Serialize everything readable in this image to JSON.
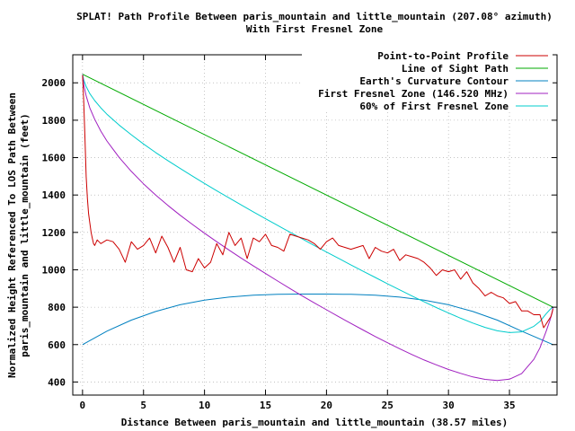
{
  "chart_data": {
    "type": "line",
    "title_line1": "SPLAT! Path Profile Between paris_mountain and little_mountain (207.08° azimuth)",
    "title_line2": "With First Fresnel Zone",
    "xlabel": "Distance Between paris_mountain and little_mountain (38.57 miles)",
    "ylabel_line1": "Normalized Height Referenced To LOS Path Between",
    "ylabel_line2": "paris_mountain and little_mountain (feet)",
    "xlim": [
      -0.8,
      38.9
    ],
    "ylim": [
      330,
      2150
    ],
    "xticks": [
      0,
      5,
      10,
      15,
      20,
      25,
      30,
      35
    ],
    "yticks": [
      400,
      600,
      800,
      1000,
      1200,
      1400,
      1600,
      1800,
      2000
    ],
    "grid": true,
    "legend_position": "top-right",
    "series": [
      {
        "name": "Point-to-Point Profile",
        "color": "#cc0000",
        "x": [
          0,
          0.1,
          0.2,
          0.3,
          0.4,
          0.5,
          0.6,
          0.7,
          0.8,
          0.9,
          1.0,
          1.2,
          1.5,
          2.0,
          2.5,
          3.0,
          3.5,
          4.0,
          4.5,
          5.0,
          5.5,
          6.0,
          6.5,
          7.0,
          7.5,
          8.0,
          8.5,
          9.0,
          9.5,
          10.0,
          10.5,
          11.0,
          11.5,
          12.0,
          12.5,
          13.0,
          13.5,
          14.0,
          14.5,
          15.0,
          15.5,
          16.0,
          16.5,
          17.0,
          17.5,
          18.0,
          18.5,
          19.0,
          19.5,
          20.0,
          20.5,
          21.0,
          21.5,
          22.0,
          22.5,
          23.0,
          23.5,
          24.0,
          24.5,
          25.0,
          25.5,
          26.0,
          26.5,
          27.0,
          27.5,
          28.0,
          28.5,
          29.0,
          29.5,
          30.0,
          30.5,
          31.0,
          31.5,
          32.0,
          32.5,
          33.0,
          33.5,
          34.0,
          34.5,
          35.0,
          35.5,
          36.0,
          36.5,
          37.0,
          37.5,
          37.8,
          38.0,
          38.2,
          38.4,
          38.57
        ],
        "y": [
          2040,
          1900,
          1700,
          1500,
          1380,
          1300,
          1250,
          1200,
          1170,
          1140,
          1130,
          1160,
          1140,
          1160,
          1150,
          1110,
          1040,
          1150,
          1110,
          1130,
          1170,
          1090,
          1180,
          1120,
          1040,
          1120,
          1000,
          990,
          1060,
          1010,
          1040,
          1140,
          1080,
          1200,
          1130,
          1170,
          1060,
          1170,
          1150,
          1190,
          1130,
          1120,
          1100,
          1190,
          1180,
          1170,
          1160,
          1140,
          1110,
          1150,
          1170,
          1130,
          1120,
          1110,
          1120,
          1130,
          1060,
          1120,
          1100,
          1090,
          1110,
          1050,
          1080,
          1070,
          1060,
          1040,
          1010,
          970,
          1000,
          990,
          1000,
          950,
          990,
          930,
          900,
          860,
          880,
          860,
          850,
          820,
          830,
          780,
          780,
          760,
          760,
          690,
          710,
          730,
          750,
          790
        ]
      },
      {
        "name": "Line of Sight Path",
        "color": "#00aa00",
        "x": [
          0,
          38.57
        ],
        "y": [
          2046,
          800
        ]
      },
      {
        "name": "Earth's Curvature Contour",
        "color": "#0080c0",
        "x": [
          0,
          2,
          4,
          6,
          8,
          10,
          12,
          14,
          16,
          18,
          19.29,
          20,
          22,
          24,
          26,
          28,
          30,
          32,
          34,
          36,
          38.57
        ],
        "y": [
          600,
          672,
          731,
          777,
          813,
          838,
          854,
          864,
          869,
          870,
          870,
          870,
          869,
          864,
          854,
          838,
          813,
          777,
          731,
          672,
          600
        ]
      },
      {
        "name": "First Fresnel Zone (146.520 MHz)",
        "color": "#a020c0",
        "x": [
          0,
          0.1,
          0.3,
          0.6,
          1,
          1.5,
          2,
          3,
          4,
          5,
          6,
          7,
          8,
          9,
          10,
          11,
          12,
          13,
          14,
          15,
          16,
          17,
          18,
          19,
          20,
          21,
          22,
          23,
          24,
          25,
          26,
          27,
          28,
          29,
          30,
          31,
          32,
          33,
          34,
          35,
          36,
          37,
          37.5,
          38,
          38.3,
          38.5,
          38.57
        ],
        "y": [
          2046,
          1990,
          1930,
          1865,
          1805,
          1742,
          1689,
          1601,
          1526,
          1460,
          1400,
          1344,
          1292,
          1243,
          1196,
          1150,
          1106,
          1063,
          1021,
          980,
          940,
          900,
          861,
          823,
          786,
          749,
          713,
          678,
          643,
          610,
          578,
          547,
          518,
          492,
          467,
          446,
          427,
          414,
          408,
          415,
          445,
          521,
          583,
          670,
          727,
          771,
          800
        ]
      },
      {
        "name": "60% of First Fresnel Zone",
        "color": "#00cccc",
        "x": [
          0,
          0.1,
          0.3,
          0.6,
          1,
          1.5,
          2,
          3,
          4,
          5,
          6,
          7,
          8,
          9,
          10,
          11,
          12,
          13,
          14,
          15,
          16,
          17,
          18,
          19,
          20,
          21,
          22,
          23,
          24,
          25,
          26,
          27,
          28,
          29,
          30,
          31,
          32,
          33,
          34,
          35,
          36,
          37,
          37.5,
          38,
          38.3,
          38.5,
          38.57
        ],
        "y": [
          2046,
          2015,
          1980,
          1942,
          1905,
          1866,
          1832,
          1774,
          1722,
          1673,
          1627,
          1584,
          1542,
          1501,
          1462,
          1423,
          1385,
          1347,
          1310,
          1273,
          1237,
          1201,
          1166,
          1130,
          1095,
          1061,
          1026,
          992,
          959,
          925,
          893,
          860,
          829,
          798,
          769,
          741,
          715,
          692,
          674,
          664,
          668,
          698,
          724,
          764,
          786,
          798,
          800
        ]
      }
    ]
  }
}
